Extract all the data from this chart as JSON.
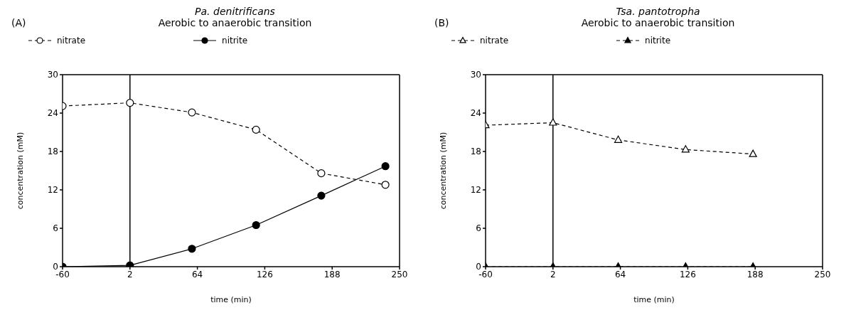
{
  "chart_data": [
    {
      "type": "line",
      "title": "Pa. denitrificans",
      "subtitle": "Aerobic to anaerobic transition",
      "annotations": [
        "(A)"
      ],
      "xlabel": "time (min)",
      "ylabel": "concentration (mM)",
      "xlim": [
        -60,
        250
      ],
      "xticks": [
        -60,
        2,
        64,
        126,
        188,
        250
      ],
      "ylim": [
        0,
        30
      ],
      "yticks": [
        0,
        6,
        12,
        18,
        24,
        30
      ],
      "legend": "top",
      "grid": false,
      "ref_lines": [
        {
          "axis": "x",
          "value": 2,
          "color": "#000000",
          "line_style": "solid"
        }
      ],
      "series": [
        {
          "name": "nitrate",
          "color": "#000000",
          "marker": "circle",
          "line_style": "dashed",
          "x": [
            -60,
            2,
            59,
            118,
            178,
            237
          ],
          "values": [
            25.1,
            25.6,
            24.1,
            21.4,
            14.6,
            12.8
          ]
        },
        {
          "name": "nitrite",
          "color": "#000000",
          "marker": "circle",
          "line_style": "solid",
          "x": [
            -60,
            2,
            59,
            118,
            178,
            237
          ],
          "values": [
            0,
            0.2,
            2.8,
            6.5,
            11.1,
            15.7
          ]
        }
      ]
    },
    {
      "type": "line",
      "title": "Tsa. pantotropha",
      "subtitle": "Aerobic to anaerobic transition",
      "annotations": [
        "(B)"
      ],
      "xlabel": "time (min)",
      "ylabel": "concentration (mM)",
      "xlim": [
        -60,
        250
      ],
      "xticks": [
        -60,
        2,
        64,
        126,
        188,
        250
      ],
      "ylim": [
        0,
        30
      ],
      "yticks": [
        0,
        6,
        12,
        18,
        24,
        30
      ],
      "legend": "top",
      "grid": false,
      "ref_lines": [
        {
          "axis": "x",
          "value": 2,
          "color": "#000000",
          "line_style": "solid"
        }
      ],
      "series": [
        {
          "name": "nitrate",
          "color": "#000000",
          "marker": "triangle",
          "line_style": "dashed",
          "x": [
            -60,
            2,
            62,
            124,
            186
          ],
          "values": [
            22.1,
            22.5,
            19.8,
            18.3,
            17.6
          ]
        },
        {
          "name": "nitrite",
          "color": "#000000",
          "marker": "triangle",
          "line_style": "dashed",
          "x": [
            -60,
            2,
            62,
            124,
            186
          ],
          "values": [
            0,
            0,
            0,
            0,
            0
          ]
        }
      ]
    }
  ]
}
